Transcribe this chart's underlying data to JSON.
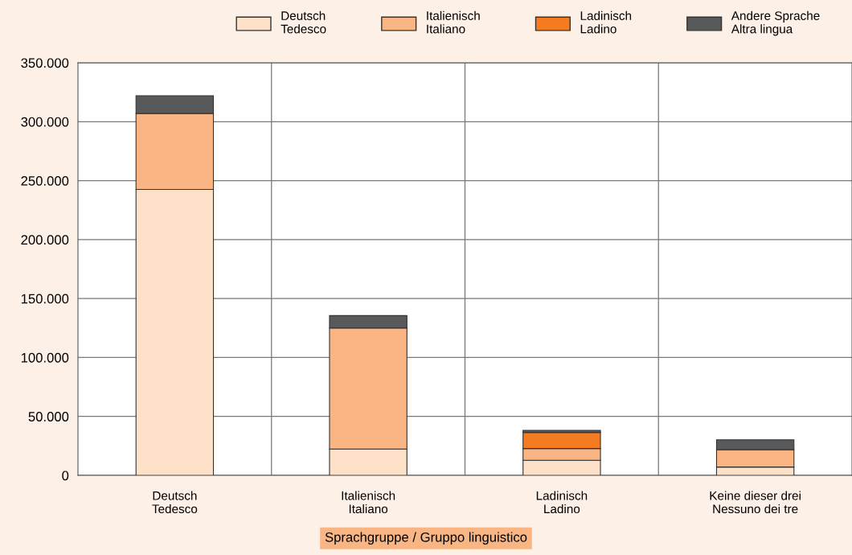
{
  "chart_data": {
    "type": "bar",
    "stacked": true,
    "xlabel": "Sprachgruppe / Gruppo linguistico",
    "categories": [
      "Deutsch\nTedesco",
      "Italienisch\nItaliano",
      "Ladinisch\nLadino",
      "Keine dieser drei\nNessuno dei tre"
    ],
    "series": [
      {
        "name": "Deutsch\nTedesco",
        "color": "#fde0c8",
        "values": [
          242500,
          22300,
          12800,
          7100
        ]
      },
      {
        "name": "Italienisch\nItaliano",
        "color": "#f9b684",
        "values": [
          64500,
          102700,
          10000,
          14700
        ]
      },
      {
        "name": "Ladinisch\nLadino",
        "color": "#f47b20",
        "values": [
          0,
          0,
          13600,
          0
        ]
      },
      {
        "name": "Andere Sprache\nAltra lingua",
        "color": "#58595b",
        "values": [
          15000,
          10500,
          1800,
          8400
        ]
      }
    ],
    "ylim": [
      0,
      350000
    ],
    "yticks": [
      0,
      {
        "value": 50000,
        "label": "50.000"
      },
      {
        "value": 100000,
        "label": "100.000"
      },
      {
        "value": 150000,
        "label": "150.000"
      },
      {
        "value": 200000,
        "label": "200.000"
      },
      {
        "value": 250000,
        "label": "250.000"
      },
      {
        "value": 300000,
        "label": "300.000"
      },
      {
        "value": 350000,
        "label": "350.000"
      }
    ],
    "grid": true,
    "legend": "top"
  }
}
